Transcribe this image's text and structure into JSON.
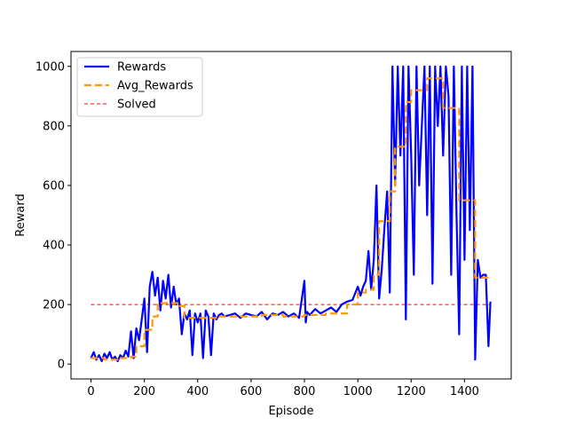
{
  "chart_data": {
    "type": "line",
    "xlabel": "Episode",
    "ylabel": "Reward",
    "xlim": [
      -75,
      1575
    ],
    "ylim": [
      -50,
      1050
    ],
    "xticks": [
      0,
      200,
      400,
      600,
      800,
      1000,
      1200,
      1400
    ],
    "yticks": [
      0,
      200,
      400,
      600,
      800,
      1000
    ],
    "grid": false,
    "legend_position": "top-left",
    "series": [
      {
        "name": "Rewards",
        "color": "#0000ff",
        "style": "solid",
        "x": [
          0,
          10,
          20,
          30,
          40,
          50,
          60,
          70,
          80,
          90,
          100,
          110,
          120,
          130,
          140,
          150,
          160,
          170,
          180,
          190,
          200,
          210,
          220,
          230,
          240,
          250,
          260,
          270,
          280,
          290,
          300,
          310,
          320,
          330,
          340,
          350,
          360,
          370,
          380,
          390,
          400,
          410,
          420,
          430,
          440,
          450,
          460,
          470,
          480,
          490,
          500,
          520,
          540,
          560,
          580,
          600,
          620,
          640,
          660,
          680,
          700,
          720,
          740,
          760,
          780,
          800,
          805,
          810,
          820,
          840,
          860,
          880,
          900,
          920,
          940,
          960,
          980,
          1000,
          1010,
          1020,
          1030,
          1040,
          1050,
          1060,
          1070,
          1080,
          1090,
          1100,
          1110,
          1120,
          1130,
          1140,
          1150,
          1160,
          1170,
          1180,
          1190,
          1200,
          1210,
          1220,
          1230,
          1240,
          1250,
          1260,
          1270,
          1280,
          1290,
          1300,
          1310,
          1320,
          1330,
          1340,
          1350,
          1360,
          1370,
          1380,
          1390,
          1400,
          1410,
          1420,
          1430,
          1440,
          1450,
          1460,
          1470,
          1480,
          1490,
          1497
        ],
        "values": [
          20,
          40,
          15,
          30,
          10,
          35,
          20,
          40,
          15,
          25,
          10,
          30,
          20,
          45,
          25,
          110,
          20,
          120,
          80,
          150,
          220,
          40,
          260,
          310,
          230,
          290,
          180,
          280,
          220,
          300,
          190,
          260,
          200,
          220,
          100,
          170,
          150,
          180,
          30,
          170,
          140,
          170,
          20,
          180,
          160,
          30,
          170,
          150,
          165,
          170,
          160,
          165,
          170,
          155,
          170,
          165,
          160,
          175,
          150,
          170,
          165,
          175,
          160,
          170,
          155,
          280,
          140,
          175,
          165,
          185,
          170,
          180,
          190,
          175,
          200,
          210,
          215,
          260,
          230,
          260,
          280,
          380,
          250,
          350,
          600,
          220,
          320,
          460,
          580,
          240,
          1000,
          600,
          1000,
          700,
          1000,
          150,
          1000,
          700,
          300,
          1000,
          600,
          800,
          1000,
          500,
          1000,
          270,
          1000,
          800,
          1000,
          700,
          1000,
          900,
          300,
          1000,
          500,
          100,
          1000,
          350,
          1000,
          450,
          1000,
          15,
          350,
          290,
          300,
          300,
          60,
          210
        ]
      },
      {
        "name": "Avg_Rewards",
        "color": "#ff9900",
        "style": "dashed",
        "x": [
          0,
          50,
          50,
          100,
          100,
          150,
          150,
          170,
          170,
          200,
          200,
          230,
          230,
          250,
          250,
          330,
          330,
          350,
          350,
          480,
          480,
          560,
          560,
          640,
          640,
          720,
          720,
          800,
          800,
          880,
          880,
          960,
          960,
          1000,
          1000,
          1030,
          1030,
          1060,
          1060,
          1080,
          1080,
          1120,
          1120,
          1140,
          1140,
          1180,
          1180,
          1200,
          1200,
          1260,
          1260,
          1320,
          1320,
          1380,
          1380,
          1440,
          1440,
          1500
        ],
        "values": [
          20,
          20,
          15,
          15,
          20,
          20,
          25,
          25,
          60,
          60,
          115,
          115,
          160,
          160,
          205,
          205,
          195,
          195,
          155,
          155,
          160,
          160,
          160,
          160,
          165,
          165,
          160,
          160,
          165,
          165,
          170,
          170,
          200,
          200,
          240,
          240,
          250,
          250,
          300,
          300,
          480,
          480,
          580,
          580,
          730,
          730,
          880,
          880,
          920,
          920,
          960,
          960,
          860,
          860,
          550,
          550,
          290,
          290
        ]
      },
      {
        "name": "Solved",
        "color": "#ff0000",
        "style": "dashed-thin",
        "x": [
          0,
          1500
        ],
        "values": [
          200,
          200
        ]
      }
    ]
  }
}
